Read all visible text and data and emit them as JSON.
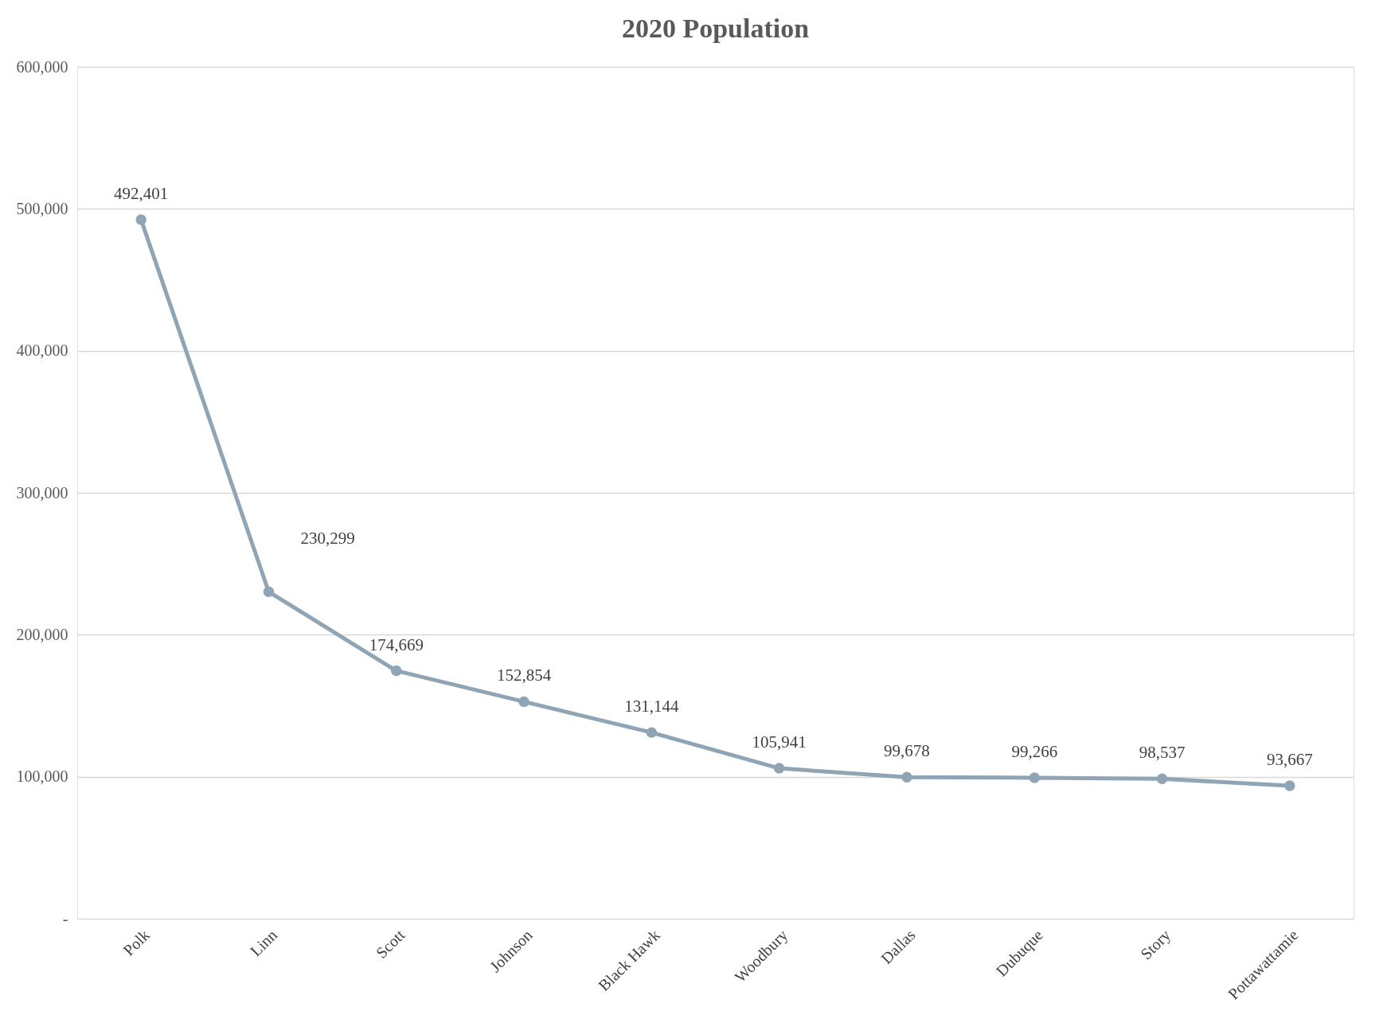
{
  "chart_data": {
    "type": "line",
    "title": "2020 Population",
    "categories": [
      "Polk",
      "Linn",
      "Scott",
      "Johnson",
      "Black Hawk",
      "Woodbury",
      "Dallas",
      "Dubuque",
      "Story",
      "Pottawattamie"
    ],
    "series": [
      {
        "color": "#8fa5b5",
        "values": [
          492401,
          230299,
          174669,
          152854,
          131144,
          105941,
          99678,
          99266,
          98537,
          93667
        ],
        "value_labels": [
          "492,401",
          "230,299",
          "174,669",
          "152,854",
          "131,144",
          "105,941",
          "99,678",
          "99,266",
          "98,537",
          "93,667"
        ]
      }
    ],
    "ylim": [
      0,
      600000
    ],
    "yticks": [
      {
        "value": 0,
        "label": "-"
      },
      {
        "value": 100000,
        "label": "100,000"
      },
      {
        "value": 200000,
        "label": "200,000"
      },
      {
        "value": 300000,
        "label": "300,000"
      },
      {
        "value": 400000,
        "label": "400,000"
      },
      {
        "value": 500000,
        "label": "500,000"
      },
      {
        "value": 600000,
        "label": "600,000"
      }
    ],
    "grid": "y",
    "legend": false,
    "marker": "circle",
    "line_style": "solid"
  }
}
